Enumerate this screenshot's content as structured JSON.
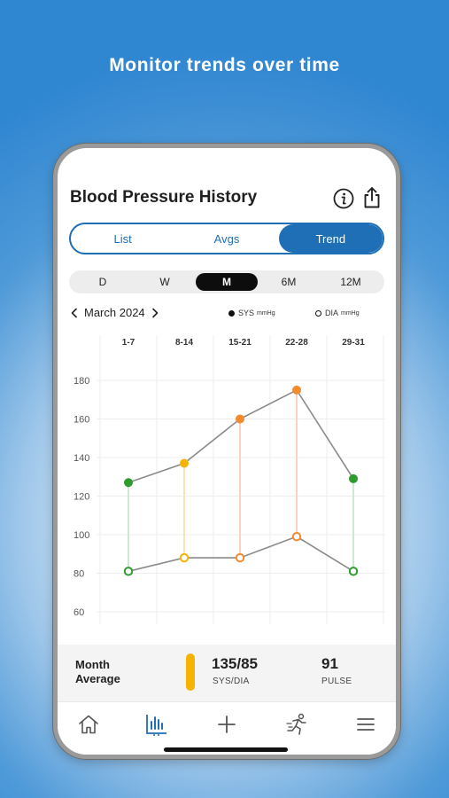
{
  "headline": "Monitor trends over time",
  "header": {
    "title": "Blood Pressure History",
    "info_icon": "info-icon",
    "share_icon": "share-icon"
  },
  "view_tabs": [
    {
      "label": "List",
      "active": false
    },
    {
      "label": "Avgs",
      "active": false
    },
    {
      "label": "Trend",
      "active": true
    }
  ],
  "range_tabs": [
    {
      "label": "D",
      "active": false
    },
    {
      "label": "W",
      "active": false
    },
    {
      "label": "M",
      "active": true
    },
    {
      "label": "6M",
      "active": false
    },
    {
      "label": "12M",
      "active": false
    }
  ],
  "period": {
    "label": "March 2024"
  },
  "legend": {
    "sys": {
      "label": "SYS",
      "unit": "mmHg"
    },
    "dia": {
      "label": "DIA",
      "unit": "mmHg"
    }
  },
  "chart_data": {
    "type": "line",
    "categories": [
      "1-7",
      "8-14",
      "15-21",
      "22-28",
      "29-31"
    ],
    "ylim": [
      60,
      180
    ],
    "yticks": [
      60,
      80,
      100,
      120,
      140,
      160,
      180
    ],
    "series": [
      {
        "name": "SYS",
        "values": [
          127,
          137,
          160,
          175,
          129
        ]
      },
      {
        "name": "DIA",
        "values": [
          81,
          88,
          88,
          99,
          81
        ]
      }
    ],
    "point_colors": [
      "#2e9b2e",
      "#f6b400",
      "#f28a2e",
      "#f28a2e",
      "#2e9b2e"
    ],
    "range_line_colors": [
      "#cfe8cf",
      "#fde2b3",
      "#fbd3b8",
      "#fbd3b8",
      "#cfe8cf"
    ],
    "line_color": "#8a8a8a",
    "grid": true
  },
  "summary": {
    "label": "Month Average",
    "bp_value": "135/85",
    "bp_sub": "SYS/DIA",
    "pulse_value": "91",
    "pulse_sub": "PULSE",
    "bar_color": "#f6b400"
  },
  "tabbar": [
    {
      "icon": "home-icon",
      "active": false
    },
    {
      "icon": "chart-icon",
      "active": true
    },
    {
      "icon": "plus-icon",
      "active": false
    },
    {
      "icon": "activity-icon",
      "active": false
    },
    {
      "icon": "menu-icon",
      "active": false
    }
  ],
  "colors": {
    "accent": "#1f6fb6",
    "range_active": "#0d0d0d"
  }
}
